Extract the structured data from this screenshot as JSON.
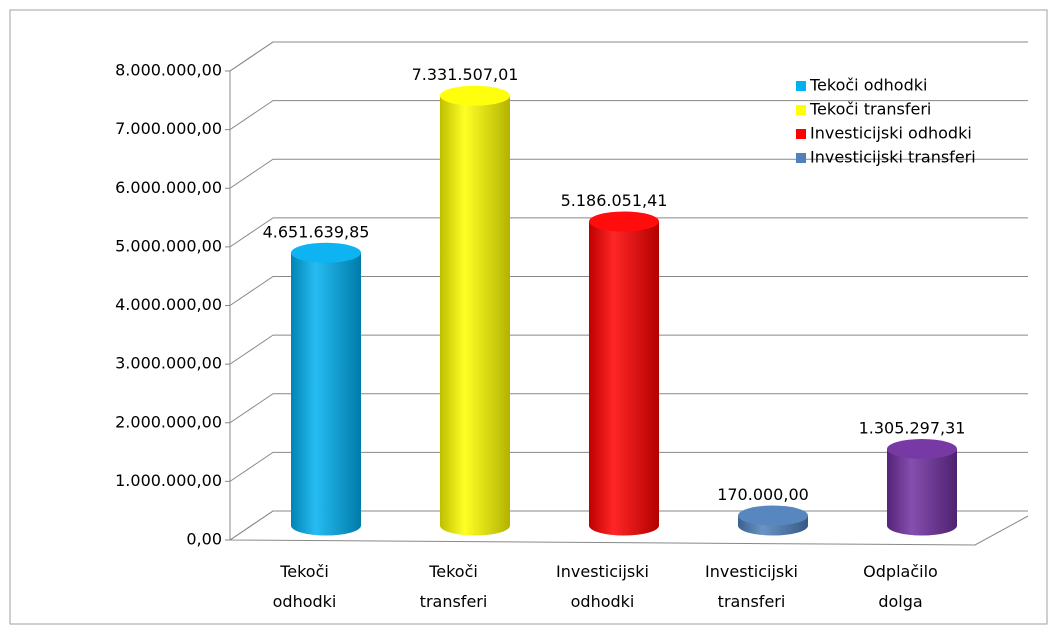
{
  "chart_data": {
    "type": "bar3d",
    "categories": [
      "Tekoči odhodki",
      "Tekoči transferi",
      "Investicijski odhodki",
      "Investicijski transferi",
      "Odplačilo dolga"
    ],
    "values": [
      4651639.85,
      7331507.01,
      5186051.41,
      170000,
      1305297.31
    ],
    "value_labels": [
      "4.651.639,85",
      "7.331.507,01",
      "5.186.051,41",
      "170.000,00",
      "1.305.297,31"
    ],
    "colors": [
      "#00b0f0",
      "#ffff00",
      "#ff0000",
      "#4f81bd",
      "#7030a0"
    ],
    "legend": [
      {
        "name": "Tekoči odhodki",
        "color": "#00b0f0"
      },
      {
        "name": "Tekoči transferi",
        "color": "#ffff00"
      },
      {
        "name": "Investicijski odhodki",
        "color": "#ff0000"
      },
      {
        "name": "Investicijski transferi",
        "color": "#4f81bd"
      }
    ],
    "ylim": [
      0,
      8000000
    ],
    "yticks": [
      {
        "value": 0,
        "label": "0,00"
      },
      {
        "value": 1000000,
        "label": "1.000.000,00"
      },
      {
        "value": 2000000,
        "label": "2.000.000,00"
      },
      {
        "value": 3000000,
        "label": "3.000.000,00"
      },
      {
        "value": 4000000,
        "label": "4.000.000,00"
      },
      {
        "value": 5000000,
        "label": "5.000.000,00"
      },
      {
        "value": 6000000,
        "label": "6.000.000,00"
      },
      {
        "value": 7000000,
        "label": "7.000.000,00"
      },
      {
        "value": 8000000,
        "label": "8.000.000,00"
      }
    ],
    "grid": true
  }
}
